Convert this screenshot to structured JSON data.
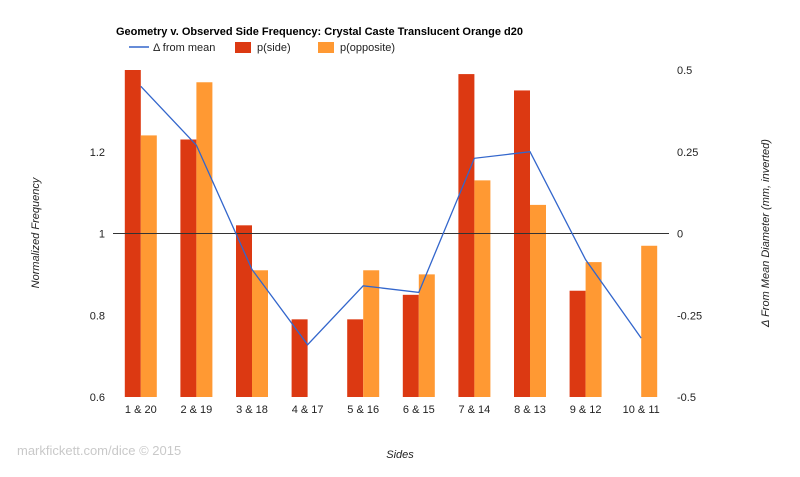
{
  "chart_data": {
    "type": "bar",
    "title": "Geometry v. Observed Side Frequency: Crystal Caste Translucent Orange d20",
    "xlabel": "Sides",
    "ylabel": "Normalized Frequency",
    "y2label": "Δ From Mean Diameter (mm, inverted)",
    "categories": [
      "1 & 20",
      "2 & 19",
      "3 & 18",
      "4 & 17",
      "5 & 16",
      "6 & 15",
      "7 & 14",
      "8 & 13",
      "9 & 12",
      "10 & 11"
    ],
    "series": [
      {
        "name": "p(side)",
        "type": "bar",
        "axis": "left",
        "color": "#dc3912",
        "values": [
          1.4,
          1.23,
          1.02,
          0.79,
          0.79,
          0.85,
          1.39,
          1.35,
          0.86,
          0.58
        ]
      },
      {
        "name": "p(opposite)",
        "type": "bar",
        "axis": "left",
        "color": "#ff9933",
        "values": [
          1.24,
          1.37,
          0.91,
          0.58,
          0.91,
          0.9,
          1.13,
          1.07,
          0.93,
          0.97
        ]
      },
      {
        "name": "Δ from mean",
        "type": "line",
        "axis": "right",
        "color": "#3366cc",
        "values": [
          0.45,
          0.27,
          -0.11,
          -0.34,
          -0.16,
          -0.18,
          0.23,
          0.25,
          -0.08,
          -0.32
        ]
      }
    ],
    "ylim": [
      0.6,
      1.4
    ],
    "yticks": [
      {
        "v": 0.6,
        "label": "0.6"
      },
      {
        "v": 0.8,
        "label": "0.8"
      },
      {
        "v": 1.0,
        "label": "1"
      },
      {
        "v": 1.2,
        "label": "1.2"
      }
    ],
    "y2lim": [
      -0.5,
      0.5
    ],
    "y2ticks": [
      {
        "v": 0.5,
        "label": "0.5"
      },
      {
        "v": 0.25,
        "label": "0.25"
      },
      {
        "v": 0,
        "label": "0"
      },
      {
        "v": -0.25,
        "label": "-0.25"
      },
      {
        "v": -0.5,
        "label": "-0.5"
      }
    ],
    "baseline": 1.0,
    "legend": {
      "position": "top-left"
    },
    "grid": false
  },
  "credit": "markfickett.com/dice © 2015"
}
